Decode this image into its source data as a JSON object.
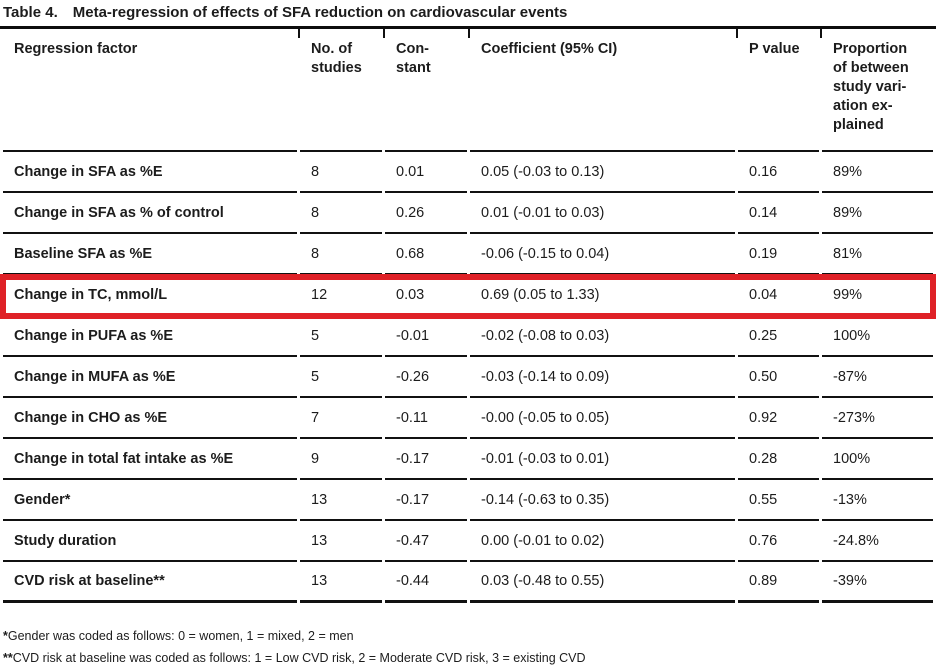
{
  "table": {
    "label": "Table 4.",
    "title": "Meta-regression of effects of SFA reduction on cardiovascular events",
    "columns": [
      {
        "label": "Regression factor",
        "lines": [
          "Regression factor"
        ]
      },
      {
        "label": "No. of studies",
        "lines": [
          "No. of",
          "studies"
        ]
      },
      {
        "label": "Constant",
        "lines": [
          "Con-",
          "stant"
        ]
      },
      {
        "label": "Coefficient (95% CI)",
        "lines": [
          "Coefficient (95% CI)"
        ]
      },
      {
        "label": "P value",
        "lines": [
          "P value"
        ]
      },
      {
        "label": "Proportion of between study variation explained",
        "lines": [
          "Proportion",
          "of between",
          "study vari-",
          "ation ex-",
          "plained"
        ]
      }
    ],
    "rows": [
      {
        "factor": "Change in SFA as %E",
        "studies": "8",
        "constant": "0.01",
        "coefficient": "0.05 (-0.03 to 0.13)",
        "p_value": "0.16",
        "proportion": "89%"
      },
      {
        "factor": "Change in SFA as % of control",
        "studies": "8",
        "constant": "0.26",
        "coefficient": "0.01 (-0.01 to 0.03)",
        "p_value": "0.14",
        "proportion": "89%"
      },
      {
        "factor": "Baseline SFA as %E",
        "studies": "8",
        "constant": "0.68",
        "coefficient": "-0.06 (-0.15 to 0.04)",
        "p_value": "0.19",
        "proportion": "81%"
      },
      {
        "factor": "Change in TC, mmol/L",
        "studies": "12",
        "constant": "0.03",
        "coefficient": "0.69 (0.05 to 1.33)",
        "p_value": "0.04",
        "proportion": "99%"
      },
      {
        "factor": "Change in PUFA as %E",
        "studies": "5",
        "constant": "-0.01",
        "coefficient": "-0.02 (-0.08 to 0.03)",
        "p_value": "0.25",
        "proportion": "100%"
      },
      {
        "factor": "Change in MUFA as %E",
        "studies": "5",
        "constant": "-0.26",
        "coefficient": "-0.03 (-0.14 to 0.09)",
        "p_value": "0.50",
        "proportion": "-87%"
      },
      {
        "factor": "Change in CHO as %E",
        "studies": "7",
        "constant": "-0.11",
        "coefficient": "-0.00 (-0.05 to 0.05)",
        "p_value": "0.92",
        "proportion": "-273%"
      },
      {
        "factor": "Change in total fat intake as %E",
        "studies": "9",
        "constant": "-0.17",
        "coefficient": "-0.01 (-0.03 to 0.01)",
        "p_value": "0.28",
        "proportion": "100%"
      },
      {
        "factor": "Gender*",
        "studies": "13",
        "constant": "-0.17",
        "coefficient": "-0.14 (-0.63 to 0.35)",
        "p_value": "0.55",
        "proportion": "-13%"
      },
      {
        "factor": "Study duration",
        "studies": "13",
        "constant": "-0.47",
        "coefficient": "0.00 (-0.01 to 0.02)",
        "p_value": "0.76",
        "proportion": "-24.8%"
      },
      {
        "factor": "CVD risk at baseline**",
        "studies": "13",
        "constant": "-0.44",
        "coefficient": "0.03 (-0.48 to 0.55)",
        "p_value": "0.89",
        "proportion": "-39%"
      }
    ],
    "highlight": {
      "row_index": 3,
      "color": "#df2127"
    }
  },
  "footnotes": [
    {
      "marker": "*",
      "text": "Gender was coded as follows: 0 = women, 1 = mixed, 2 = men"
    },
    {
      "marker": "**",
      "text": "CVD risk at baseline was coded as follows: 1 = Low CVD risk, 2 = Moderate CVD risk, 3 = existing CVD"
    }
  ]
}
